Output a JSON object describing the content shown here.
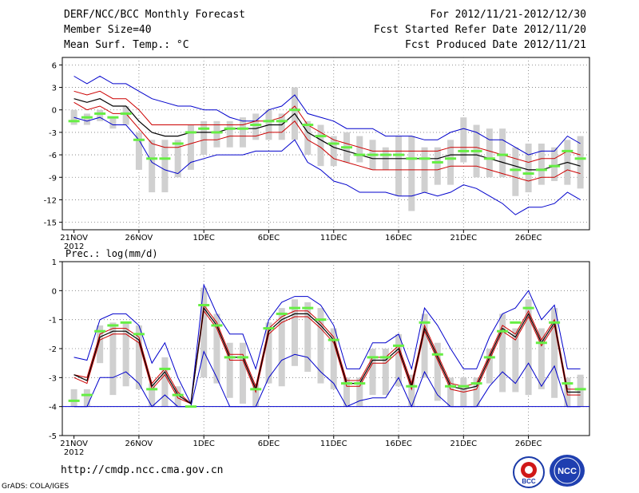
{
  "header": {
    "title": "DERF/NCC/BCC Monthly Forecast",
    "member_size": "Member Size=40",
    "variable": "Mean Surf. Temp.: °C",
    "period": "For 2012/11/21-2012/12/30",
    "start_date": "Fcst Started Refer Date 2012/11/20",
    "produced_date": "Fcst Produced Date 2012/11/21"
  },
  "footer": {
    "url": "http://cmdp.ncc.cma.gov.cn",
    "grads": "GrADS: COLA/IGES",
    "logo_bcc": "BCC",
    "logo_ncc": "NCC"
  },
  "colors": {
    "envelope": "#0000cc",
    "inner": "#cc0000",
    "mean": "#000000",
    "median": "#66ee44",
    "box": "#d0d0d0"
  },
  "chart_data": [
    {
      "type": "box-line",
      "title": "Mean Surf. Temp.: °C",
      "ylim": [
        -16,
        7
      ],
      "yticks": [
        6,
        3,
        0,
        -3,
        -6,
        -9,
        -12,
        -15
      ],
      "x": [
        "11/21",
        "11/22",
        "11/23",
        "11/24",
        "11/25",
        "11/26",
        "11/27",
        "11/28",
        "11/29",
        "11/30",
        "12/01",
        "12/02",
        "12/03",
        "12/04",
        "12/05",
        "12/06",
        "12/07",
        "12/08",
        "12/09",
        "12/10",
        "12/11",
        "12/12",
        "12/13",
        "12/14",
        "12/15",
        "12/16",
        "12/17",
        "12/18",
        "12/19",
        "12/20",
        "12/21",
        "12/22",
        "12/23",
        "12/24",
        "12/25",
        "12/26",
        "12/27",
        "12/28",
        "12/29",
        "12/30"
      ],
      "xtick_labels": [
        "21NOV",
        "26NOV",
        "1DEC",
        "6DEC",
        "11DEC",
        "16DEC",
        "21DEC",
        "26DEC"
      ],
      "year_label": "2012",
      "series": [
        {
          "name": "max",
          "values": [
            4.5,
            3.5,
            4.5,
            3.5,
            3.5,
            2.5,
            1.5,
            1.0,
            0.5,
            0.5,
            0.0,
            0.0,
            -1.0,
            -1.5,
            -1.5,
            0.0,
            0.5,
            2.0,
            -0.5,
            -1.0,
            -1.5,
            -2.5,
            -2.5,
            -2.5,
            -3.5,
            -3.5,
            -3.5,
            -4.0,
            -4.0,
            -3.0,
            -2.5,
            -3.0,
            -4.0,
            -4.0,
            -5.0,
            -6.0,
            -5.5,
            -5.5,
            -3.5,
            -4.5
          ]
        },
        {
          "name": "upper",
          "values": [
            2.5,
            2.0,
            2.5,
            1.5,
            1.5,
            0.0,
            -2.0,
            -2.0,
            -2.0,
            -2.0,
            -2.0,
            -2.0,
            -2.0,
            -2.0,
            -1.5,
            -1.5,
            -1.0,
            0.5,
            -2.0,
            -3.0,
            -4.0,
            -4.5,
            -5.0,
            -5.5,
            -5.5,
            -5.5,
            -5.5,
            -5.5,
            -5.5,
            -5.0,
            -5.0,
            -5.0,
            -5.5,
            -6.0,
            -6.5,
            -7.0,
            -6.5,
            -6.5,
            -5.5,
            -6.0
          ]
        },
        {
          "name": "mean",
          "values": [
            1.5,
            1.0,
            1.5,
            0.5,
            0.5,
            -1.5,
            -3.0,
            -3.5,
            -3.5,
            -3.0,
            -3.0,
            -3.0,
            -2.5,
            -2.5,
            -2.5,
            -2.0,
            -2.0,
            -0.5,
            -3.0,
            -4.0,
            -5.0,
            -5.5,
            -6.0,
            -6.5,
            -6.5,
            -6.5,
            -6.5,
            -6.5,
            -6.5,
            -6.0,
            -6.0,
            -6.0,
            -6.5,
            -7.0,
            -7.5,
            -8.0,
            -8.0,
            -7.5,
            -7.0,
            -7.5
          ]
        },
        {
          "name": "lower",
          "values": [
            1.0,
            0.0,
            0.5,
            -0.5,
            -0.5,
            -2.5,
            -4.5,
            -5.0,
            -5.0,
            -4.5,
            -4.0,
            -4.0,
            -3.5,
            -3.5,
            -3.5,
            -3.0,
            -3.0,
            -1.5,
            -4.0,
            -5.0,
            -6.5,
            -7.0,
            -7.5,
            -8.0,
            -8.0,
            -8.0,
            -8.0,
            -8.0,
            -8.0,
            -7.5,
            -7.5,
            -7.5,
            -8.0,
            -8.5,
            -9.0,
            -9.5,
            -9.0,
            -9.0,
            -8.0,
            -8.5
          ]
        },
        {
          "name": "min",
          "values": [
            -1.0,
            -1.5,
            -1.0,
            -2.0,
            -2.0,
            -4.0,
            -7.0,
            -8.0,
            -8.5,
            -7.0,
            -6.5,
            -6.0,
            -6.0,
            -6.0,
            -5.5,
            -5.5,
            -5.5,
            -4.0,
            -7.0,
            -8.0,
            -9.5,
            -10.0,
            -11.0,
            -11.0,
            -11.0,
            -11.5,
            -11.5,
            -11.0,
            -11.5,
            -11.0,
            -10.0,
            -10.5,
            -11.5,
            -12.5,
            -14.0,
            -13.0,
            -13.0,
            -12.5,
            -11.0,
            -12.0
          ]
        },
        {
          "name": "box_high",
          "values": [
            0.0,
            -0.5,
            0.0,
            -1.0,
            0.5,
            -3.0,
            -4.0,
            -4.0,
            -4.0,
            -2.0,
            -1.5,
            -1.5,
            -1.5,
            -1.0,
            -0.5,
            0.0,
            -0.5,
            3.0,
            -1.5,
            -2.0,
            -3.5,
            -3.0,
            -3.5,
            -4.0,
            -5.0,
            -3.5,
            -3.5,
            -5.0,
            -5.0,
            -4.0,
            -1.0,
            -2.0,
            -2.5,
            -2.5,
            -5.0,
            -4.5,
            -4.5,
            -5.0,
            -4.0,
            -3.5
          ]
        },
        {
          "name": "box_low",
          "values": [
            -2.0,
            -2.0,
            -1.5,
            -2.5,
            -2.0,
            -8.0,
            -11.0,
            -11.0,
            -9.0,
            -8.0,
            -6.0,
            -5.0,
            -5.0,
            -5.0,
            -4.0,
            -4.0,
            -4.0,
            -4.0,
            -6.0,
            -7.5,
            -7.5,
            -7.0,
            -7.0,
            -8.0,
            -8.0,
            -11.5,
            -13.5,
            -11.0,
            -10.0,
            -10.0,
            -7.0,
            -9.0,
            -9.0,
            -9.0,
            -11.5,
            -11.0,
            -10.0,
            -9.5,
            -10.0,
            -10.5
          ]
        },
        {
          "name": "median",
          "values": [
            -1.5,
            -1.0,
            -0.5,
            -1.0,
            -0.5,
            -4.0,
            -6.5,
            -6.5,
            -4.5,
            -3.0,
            -2.5,
            -3.0,
            -2.5,
            -2.5,
            -2.0,
            -1.5,
            -1.5,
            0.0,
            -2.0,
            -3.5,
            -4.5,
            -5.0,
            -6.0,
            -6.0,
            -6.0,
            -6.0,
            -6.5,
            -6.5,
            -7.0,
            -6.5,
            -5.5,
            -5.5,
            -6.5,
            -6.0,
            -8.0,
            -8.5,
            -8.0,
            -7.5,
            -5.5,
            -6.5
          ]
        }
      ]
    },
    {
      "type": "box-line",
      "title": "Prec.: log(mm/d)",
      "ylim": [
        -5,
        1
      ],
      "yticks": [
        1,
        0,
        -1,
        -2,
        -3,
        -4,
        -5
      ],
      "x": [
        "11/21",
        "11/22",
        "11/23",
        "11/24",
        "11/25",
        "11/26",
        "11/27",
        "11/28",
        "11/29",
        "11/30",
        "12/01",
        "12/02",
        "12/03",
        "12/04",
        "12/05",
        "12/06",
        "12/07",
        "12/08",
        "12/09",
        "12/10",
        "12/11",
        "12/12",
        "12/13",
        "12/14",
        "12/15",
        "12/16",
        "12/17",
        "12/18",
        "12/19",
        "12/20",
        "12/21",
        "12/22",
        "12/23",
        "12/24",
        "12/25",
        "12/26",
        "12/27",
        "12/28",
        "12/29",
        "12/30"
      ],
      "xtick_labels": [
        "21NOV",
        "26NOV",
        "1DEC",
        "6DEC",
        "11DEC",
        "16DEC",
        "21DEC",
        "26DEC"
      ],
      "year_label": "2012",
      "series": [
        {
          "name": "max",
          "values": [
            -2.3,
            -2.4,
            -1.0,
            -0.8,
            -0.8,
            -1.2,
            -2.5,
            -1.8,
            -3.0,
            -3.9,
            0.2,
            -0.8,
            -1.5,
            -1.5,
            -2.7,
            -1.0,
            -0.4,
            -0.2,
            -0.2,
            -0.5,
            -1.2,
            -2.7,
            -2.7,
            -1.8,
            -1.8,
            -1.5,
            -2.7,
            -0.6,
            -1.2,
            -2.0,
            -2.7,
            -2.7,
            -1.6,
            -0.8,
            -0.6,
            0.0,
            -1.0,
            -0.5,
            -2.7,
            -2.7
          ]
        },
        {
          "name": "upper",
          "values": [
            -2.9,
            -3.0,
            -1.5,
            -1.3,
            -1.3,
            -1.6,
            -3.2,
            -2.7,
            -3.5,
            -3.9,
            -0.5,
            -1.1,
            -2.2,
            -2.2,
            -3.3,
            -1.3,
            -0.9,
            -0.7,
            -0.7,
            -1.1,
            -1.6,
            -3.1,
            -3.1,
            -2.3,
            -2.3,
            -1.9,
            -3.2,
            -1.2,
            -2.2,
            -3.2,
            -3.3,
            -3.2,
            -2.2,
            -1.2,
            -1.5,
            -0.7,
            -1.7,
            -1.0,
            -3.4,
            -3.4
          ]
        },
        {
          "name": "mean",
          "values": [
            -2.9,
            -3.1,
            -1.6,
            -1.4,
            -1.4,
            -1.7,
            -3.3,
            -2.8,
            -3.6,
            -3.9,
            -0.6,
            -1.2,
            -2.3,
            -2.3,
            -3.4,
            -1.4,
            -1.0,
            -0.8,
            -0.8,
            -1.2,
            -1.7,
            -3.2,
            -3.2,
            -2.4,
            -2.4,
            -2.0,
            -3.3,
            -1.3,
            -2.3,
            -3.3,
            -3.4,
            -3.3,
            -2.3,
            -1.3,
            -1.6,
            -0.8,
            -1.8,
            -1.1,
            -3.5,
            -3.5
          ]
        },
        {
          "name": "lower",
          "values": [
            -3.0,
            -3.2,
            -1.7,
            -1.5,
            -1.5,
            -1.8,
            -3.4,
            -2.9,
            -3.7,
            -3.9,
            -0.7,
            -1.3,
            -2.4,
            -2.4,
            -3.5,
            -1.5,
            -1.1,
            -0.9,
            -0.9,
            -1.3,
            -1.8,
            -3.3,
            -3.3,
            -2.5,
            -2.5,
            -2.1,
            -3.4,
            -1.4,
            -2.4,
            -3.4,
            -3.5,
            -3.4,
            -2.4,
            -1.4,
            -1.7,
            -0.9,
            -1.9,
            -1.2,
            -3.6,
            -3.6
          ]
        },
        {
          "name": "min",
          "values": [
            -4.0,
            -4.0,
            -3.0,
            -3.0,
            -2.8,
            -3.2,
            -4.0,
            -3.6,
            -4.0,
            -4.0,
            -2.1,
            -3.0,
            -4.0,
            -4.0,
            -4.0,
            -3.0,
            -2.4,
            -2.2,
            -2.3,
            -2.8,
            -3.2,
            -4.0,
            -3.8,
            -3.7,
            -3.7,
            -3.0,
            -4.0,
            -2.8,
            -3.6,
            -4.0,
            -4.0,
            -4.0,
            -3.3,
            -2.8,
            -3.2,
            -2.5,
            -3.3,
            -2.6,
            -4.0,
            -4.0
          ]
        },
        {
          "name": "box_high",
          "values": [
            -3.4,
            -3.4,
            -1.2,
            -1.1,
            -1.1,
            -1.2,
            -3.2,
            -2.3,
            -3.3,
            -4.0,
            0.1,
            -0.8,
            -1.8,
            -1.8,
            -3.2,
            -1.1,
            -0.6,
            -0.3,
            -0.4,
            -0.6,
            -1.3,
            -3.0,
            -3.0,
            -2.0,
            -2.0,
            -1.5,
            -2.9,
            -0.8,
            -1.8,
            -3.0,
            -3.0,
            -3.0,
            -2.0,
            -0.8,
            -1.3,
            -0.3,
            -1.3,
            -0.6,
            -3.0,
            -2.9
          ]
        },
        {
          "name": "box_low",
          "values": [
            -4.0,
            -4.0,
            -2.5,
            -3.6,
            -3.3,
            -3.4,
            -4.0,
            -4.0,
            -4.0,
            -4.0,
            -3.0,
            -3.2,
            -3.7,
            -3.9,
            -4.0,
            -3.2,
            -3.3,
            -2.6,
            -2.8,
            -3.2,
            -3.4,
            -4.0,
            -4.0,
            -3.6,
            -3.6,
            -3.3,
            -4.0,
            -3.0,
            -3.8,
            -4.0,
            -4.0,
            -4.0,
            -3.2,
            -3.5,
            -3.5,
            -3.6,
            -3.4,
            -3.7,
            -4.0,
            -4.0
          ]
        },
        {
          "name": "median",
          "values": [
            -3.8,
            -3.6,
            -1.4,
            -1.2,
            -1.1,
            -1.5,
            -3.4,
            -2.7,
            -3.6,
            -4.0,
            -0.5,
            -1.2,
            -2.3,
            -2.3,
            -3.4,
            -1.3,
            -0.8,
            -0.6,
            -0.6,
            -1.0,
            -1.7,
            -3.2,
            -3.2,
            -2.3,
            -2.3,
            -1.9,
            -3.3,
            -1.1,
            -2.2,
            -3.3,
            -3.3,
            -3.2,
            -2.3,
            -1.4,
            -1.1,
            -0.6,
            -1.8,
            -1.1,
            -3.2,
            -3.4
          ]
        }
      ],
      "baseline": -4
    }
  ]
}
